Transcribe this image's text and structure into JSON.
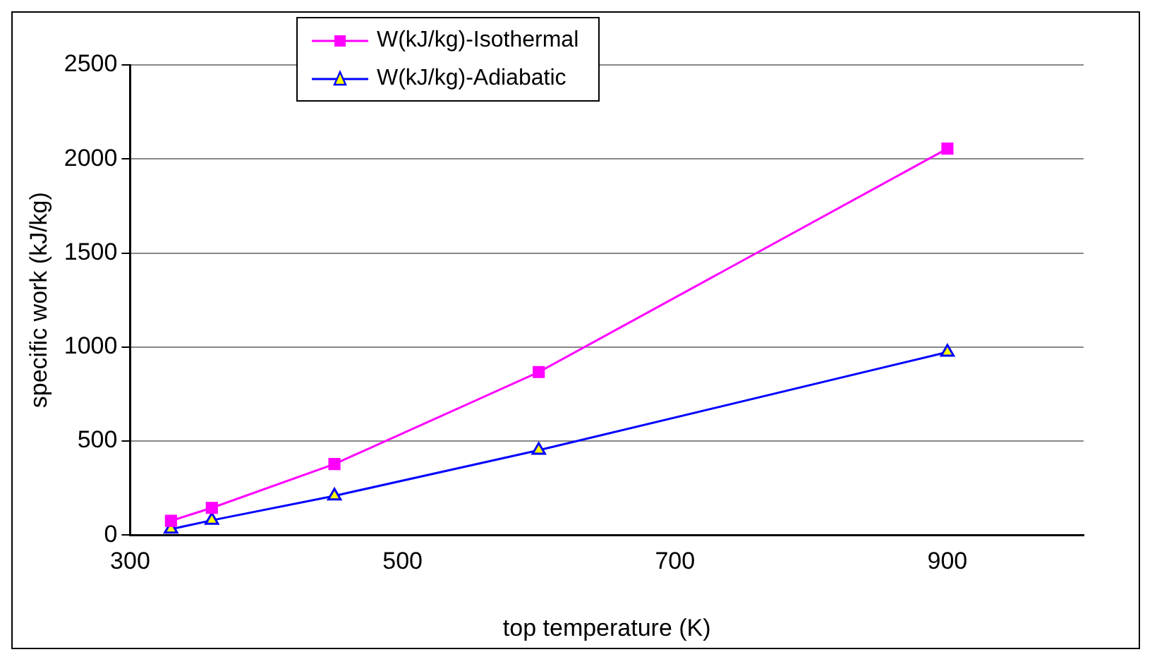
{
  "chart_data": {
    "type": "line",
    "xlabel": "top temperature (K)",
    "ylabel": "specific work (kJ/kg)",
    "xlim": [
      300,
      1000
    ],
    "xticks": [
      300,
      500,
      700,
      900
    ],
    "ylim": [
      0,
      2500
    ],
    "yticks": [
      0,
      500,
      1000,
      1500,
      2000,
      2500
    ],
    "grid": "y",
    "legend": "top",
    "x": [
      330,
      360,
      450,
      600,
      900
    ],
    "series": [
      {
        "name": "W(kJ/kg)-Isothermal",
        "color": "#ff00ff",
        "marker": "square",
        "values": [
          76,
          145,
          378,
          867,
          2055
        ]
      },
      {
        "name": "W(kJ/kg)-Adiabatic",
        "color": "#0000ff",
        "marker": "triangle",
        "values": [
          32,
          79,
          209,
          452,
          973
        ]
      }
    ]
  }
}
